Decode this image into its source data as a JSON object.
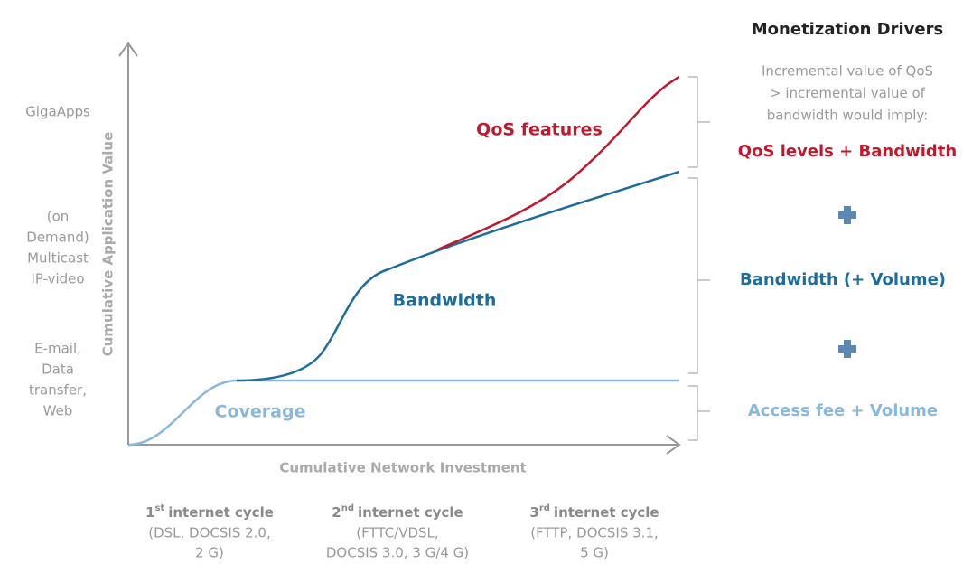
{
  "y_axis": {
    "title": "Cumulative Application Value",
    "levels": [
      {
        "lines": [
          "GigaApps"
        ]
      },
      {
        "lines": [
          "(on",
          "Demand)",
          "Multicast",
          "IP-video"
        ]
      },
      {
        "lines": [
          "E-mail,",
          "Data",
          "transfer,",
          "Web"
        ]
      }
    ]
  },
  "x_axis": {
    "title": "Cumulative Network Investment"
  },
  "curves": {
    "qos": "QoS features",
    "bandwidth": "Bandwidth",
    "coverage": "Coverage"
  },
  "drivers": {
    "title": "Monetization Drivers",
    "note": [
      "Incremental value of QoS",
      "> incremental value of",
      "bandwidth would imply:"
    ],
    "qos": "QoS levels + Bandwidth",
    "bandwidth": "Bandwidth (+ Volume)",
    "access": "Access fee + Volume"
  },
  "cycles": [
    {
      "number": "1",
      "suffix": "st",
      "name": "internet cycle",
      "detail": [
        "(DSL, DOCSIS 2.0,",
        "2 G)"
      ]
    },
    {
      "number": "2",
      "suffix": "nd",
      "name": "internet cycle",
      "detail": [
        "(FTTC/VDSL,",
        "DOCSIS 3.0, 3 G/4 G)"
      ]
    },
    {
      "number": "3",
      "suffix": "rd",
      "name": "internet cycle",
      "detail": [
        "(FTTP, DOCSIS 3.1,",
        "5 G)"
      ]
    }
  ]
}
